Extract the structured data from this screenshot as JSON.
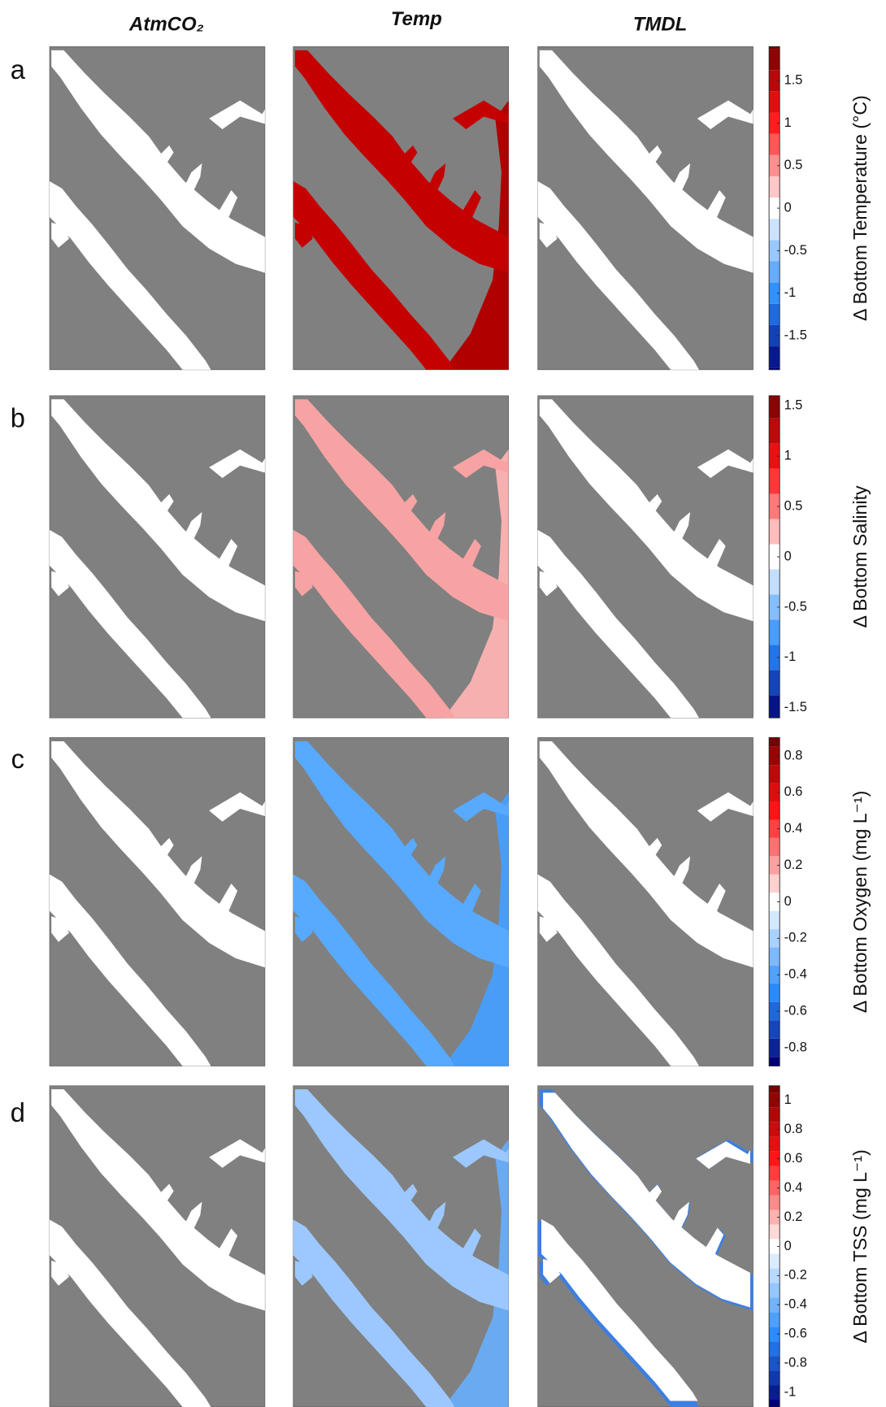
{
  "columns": [
    "AtmCO₂",
    "Temp",
    "TMDL"
  ],
  "panels": [
    {
      "label": "a",
      "colorbar": {
        "label": "Δ Bottom Temperature (°C)",
        "lim": [
          -1.9,
          1.9
        ],
        "ticks": [
          -1.5,
          -1,
          -0.5,
          0,
          0.5,
          1,
          1.5
        ]
      }
    },
    {
      "label": "b",
      "colorbar": {
        "label": "Δ Bottom Salinity",
        "lim": [
          -1.6,
          1.6
        ],
        "ticks": [
          -1.5,
          -1,
          -0.5,
          0,
          0.5,
          1,
          1.5
        ]
      }
    },
    {
      "label": "c",
      "colorbar": {
        "label": "Δ Bottom Oxygen (mg L⁻¹)",
        "lim": [
          -0.9,
          0.9
        ],
        "ticks": [
          -0.8,
          -0.6,
          -0.4,
          -0.2,
          0,
          0.2,
          0.4,
          0.6,
          0.8
        ]
      }
    },
    {
      "label": "d",
      "colorbar": {
        "label": "Δ Bottom TSS (mg L⁻¹)",
        "lim": [
          -1.1,
          1.1
        ],
        "ticks": [
          -1,
          -0.8,
          -0.6,
          -0.4,
          -0.2,
          0,
          0.2,
          0.4,
          0.6,
          0.8,
          1
        ]
      }
    }
  ]
}
